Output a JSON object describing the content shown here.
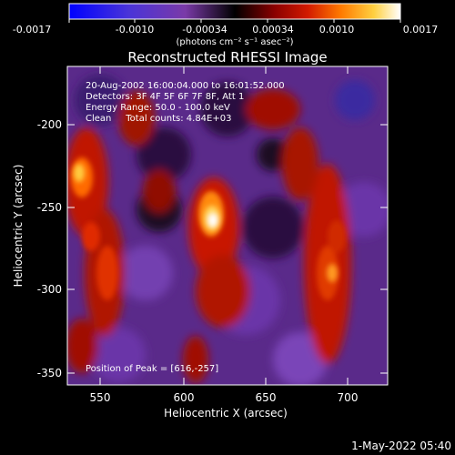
{
  "colorbar": {
    "ticks": [
      "-0.0017",
      "-0.0010",
      "-0.00034",
      "0.00034",
      "0.0010",
      "0.0017"
    ],
    "unit_label": "(photons cm⁻² s⁻¹ asec⁻²)",
    "colormap": [
      "#0000ff",
      "#5a2fc8",
      "#7a3aa8",
      "#000000",
      "#8a0000",
      "#d21a00",
      "#ff7a00",
      "#ffd040",
      "#ffffff"
    ]
  },
  "title": "Reconstructed RHESSI Image",
  "annotations": {
    "time_range": "20-Aug-2002 16:00:04.000 to 16:01:52.000",
    "detectors": "Detectors: 3F 4F 5F 6F 7F 8F, Att 1",
    "energy": "Energy Range: 50.0 - 100.0 keV",
    "clean": "Clean     Total counts: 4.84E+03",
    "peak": "Position of Peak = [616,-257]"
  },
  "axes": {
    "xlabel": "Heliocentric X (arcsec)",
    "ylabel": "Heliocentric Y (arcsec)",
    "x_ticks": [
      "550",
      "600",
      "650",
      "700"
    ],
    "y_ticks": [
      "-200",
      "-250",
      "-300",
      "-350"
    ],
    "xlim": [
      530,
      725
    ],
    "ylim": [
      -362,
      -177
    ]
  },
  "footer_date": "1-May-2022 05:40"
}
